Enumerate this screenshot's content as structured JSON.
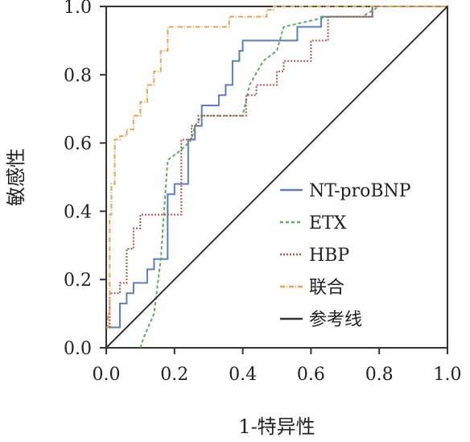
{
  "chart_data": {
    "type": "line",
    "title": "",
    "xlabel": "1-特异性",
    "ylabel": "敏感性",
    "xlim": [
      0,
      1
    ],
    "ylim": [
      0,
      1
    ],
    "xticks": [
      "0.0",
      "0.2",
      "0.4",
      "0.6",
      "0.8",
      "1.0"
    ],
    "yticks": [
      "0.0",
      "0.2",
      "0.4",
      "0.6",
      "0.8",
      "1.0"
    ],
    "grid": false,
    "legend_position": "bottom-right",
    "series": [
      {
        "name": "NT-proBNP",
        "color": "#5b7fbf",
        "dash": "none",
        "x": [
          0.0,
          0.04,
          0.04,
          0.06,
          0.06,
          0.08,
          0.08,
          0.12,
          0.12,
          0.14,
          0.14,
          0.18,
          0.18,
          0.2,
          0.2,
          0.24,
          0.24,
          0.26,
          0.26,
          0.28,
          0.28,
          0.33,
          0.33,
          0.35,
          0.35,
          0.37,
          0.37,
          0.39,
          0.39,
          0.4,
          0.4,
          0.56,
          0.56,
          0.63,
          0.63,
          0.78,
          0.78,
          0.84,
          0.84,
          1.0
        ],
        "y": [
          0.06,
          0.06,
          0.13,
          0.13,
          0.16,
          0.16,
          0.19,
          0.19,
          0.23,
          0.23,
          0.26,
          0.26,
          0.45,
          0.45,
          0.48,
          0.48,
          0.61,
          0.61,
          0.65,
          0.65,
          0.71,
          0.71,
          0.74,
          0.74,
          0.77,
          0.77,
          0.84,
          0.84,
          0.87,
          0.87,
          0.9,
          0.9,
          0.94,
          0.94,
          0.97,
          0.97,
          1.0,
          1.0,
          1.0,
          1.0
        ]
      },
      {
        "name": "ETX",
        "color": "#5ab05a",
        "dash": "4 3",
        "x": [
          0.1,
          0.11,
          0.11,
          0.14,
          0.14,
          0.16,
          0.16,
          0.18,
          0.18,
          0.22,
          0.22,
          0.25,
          0.25,
          0.26,
          0.26,
          0.28,
          0.28,
          0.4,
          0.4,
          0.42,
          0.42,
          0.46,
          0.46,
          0.5,
          0.5,
          0.52,
          0.52,
          0.65,
          0.65,
          0.75,
          0.75,
          0.8,
          0.8,
          1.0
        ],
        "y": [
          0.0,
          0.03,
          0.03,
          0.1,
          0.1,
          0.26,
          0.26,
          0.55,
          0.55,
          0.58,
          0.58,
          0.61,
          0.61,
          0.65,
          0.65,
          0.68,
          0.68,
          0.68,
          0.68,
          0.77,
          0.77,
          0.84,
          0.84,
          0.87,
          0.87,
          0.94,
          0.94,
          0.97,
          0.97,
          0.97,
          0.97,
          1.0,
          1.0,
          1.0
        ]
      },
      {
        "name": "HBP",
        "color": "#b55454",
        "dash": "2 2",
        "x": [
          0.0,
          0.01,
          0.01,
          0.04,
          0.04,
          0.06,
          0.06,
          0.08,
          0.08,
          0.1,
          0.1,
          0.22,
          0.22,
          0.25,
          0.25,
          0.27,
          0.27,
          0.41,
          0.41,
          0.44,
          0.44,
          0.5,
          0.5,
          0.52,
          0.52,
          0.6,
          0.6,
          0.65,
          0.65,
          0.78,
          0.78,
          1.0
        ],
        "y": [
          0.06,
          0.06,
          0.16,
          0.16,
          0.19,
          0.19,
          0.29,
          0.29,
          0.35,
          0.35,
          0.39,
          0.39,
          0.61,
          0.61,
          0.65,
          0.65,
          0.68,
          0.68,
          0.74,
          0.74,
          0.77,
          0.77,
          0.81,
          0.81,
          0.84,
          0.84,
          0.9,
          0.9,
          0.97,
          0.97,
          1.0,
          1.0
        ]
      },
      {
        "name": "联合",
        "color": "#e7a35a",
        "dash": "6 2 1 2",
        "x": [
          0.0,
          0.005,
          0.005,
          0.01,
          0.01,
          0.015,
          0.015,
          0.025,
          0.025,
          0.04,
          0.04,
          0.06,
          0.06,
          0.08,
          0.08,
          0.1,
          0.1,
          0.12,
          0.12,
          0.14,
          0.14,
          0.16,
          0.16,
          0.18,
          0.18,
          0.36,
          0.36,
          0.47,
          0.47,
          0.49,
          0.49,
          1.0
        ],
        "y": [
          0.06,
          0.06,
          0.1,
          0.1,
          0.39,
          0.39,
          0.48,
          0.48,
          0.61,
          0.61,
          0.62,
          0.62,
          0.64,
          0.64,
          0.68,
          0.68,
          0.72,
          0.72,
          0.77,
          0.77,
          0.81,
          0.81,
          0.87,
          0.87,
          0.94,
          0.94,
          0.97,
          0.97,
          0.99,
          0.99,
          1.0,
          1.0
        ]
      },
      {
        "name": "参考线",
        "color": "#333333",
        "dash": "none",
        "x": [
          0.0,
          1.0
        ],
        "y": [
          0.0,
          1.0
        ]
      }
    ]
  }
}
